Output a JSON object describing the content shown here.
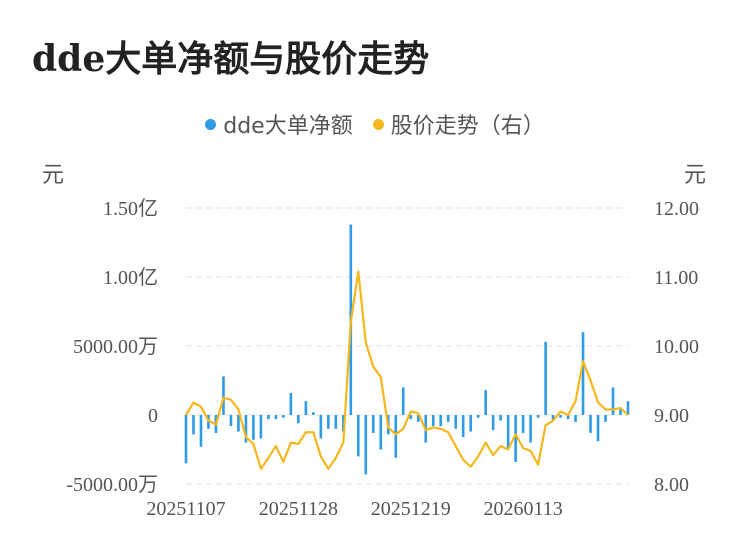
{
  "title": "dde大单净额与股价走势",
  "colors": {
    "bar": "#2e9be6",
    "line": "#f5b71c",
    "grid": "#e6e6e6"
  },
  "chart_data": {
    "type": "bar",
    "title": "dde大单净额与股价走势",
    "legend": [
      "dde大单净额",
      "股价走势（右）"
    ],
    "legend_position": "top-center",
    "y_left_unit": "元",
    "y_right_unit": "元",
    "y_left_ticks": [
      "-5000.00万",
      "0",
      "5000.00万",
      "1.00亿",
      "1.50亿"
    ],
    "y_right_ticks": [
      "8.00",
      "9.00",
      "10.00",
      "11.00",
      "12.00"
    ],
    "ylim_left": [
      -50000000,
      150000000
    ],
    "ylim_right": [
      8.0,
      12.0
    ],
    "x_tick_labels": [
      "20251107",
      "20251128",
      "20251219",
      "20260113"
    ],
    "x_tick_indices": [
      0,
      15,
      30,
      45
    ],
    "grid": true,
    "series": [
      {
        "name": "dde大单净额",
        "type": "bar",
        "axis": "left",
        "values": [
          -35000000,
          -14000000,
          -23000000,
          -10000000,
          -13000000,
          28000000,
          -8000000,
          -12000000,
          -20000000,
          -18000000,
          -17000000,
          -3000000,
          -3000000,
          -2000000,
          16000000,
          -6000000,
          10000000,
          2000000,
          -17000000,
          -10000000,
          -10000000,
          -12000000,
          138000000,
          -30000000,
          -43000000,
          -13000000,
          -25000000,
          -14000000,
          -31000000,
          20000000,
          -3000000,
          -5000000,
          -20000000,
          -8000000,
          -8000000,
          -5000000,
          -10000000,
          -16000000,
          -12000000,
          -2000000,
          18000000,
          -11000000,
          -4000000,
          -25000000,
          -34000000,
          -13000000,
          -20000000,
          -2000000,
          53000000,
          -4000000,
          -2000000,
          -3000000,
          -5000000,
          60000000,
          -13000000,
          -19000000,
          -5000000,
          20000000,
          5000000,
          10000000
        ]
      },
      {
        "name": "股价走势（右）",
        "type": "line",
        "axis": "right",
        "values": [
          9.0,
          9.18,
          9.12,
          8.92,
          8.86,
          9.25,
          9.22,
          9.08,
          8.68,
          8.58,
          8.22,
          8.38,
          8.55,
          8.32,
          8.6,
          8.58,
          8.75,
          8.75,
          8.4,
          8.22,
          8.38,
          8.6,
          10.35,
          11.08,
          10.05,
          9.7,
          9.55,
          8.82,
          8.72,
          8.8,
          9.05,
          9.03,
          8.78,
          8.82,
          8.8,
          8.75,
          8.55,
          8.35,
          8.25,
          8.4,
          8.6,
          8.42,
          8.55,
          8.5,
          8.72,
          8.52,
          8.48,
          8.28,
          8.85,
          8.92,
          9.05,
          9.0,
          9.2,
          9.78,
          9.5,
          9.18,
          9.08,
          9.08,
          9.1,
          9.0
        ]
      }
    ]
  }
}
